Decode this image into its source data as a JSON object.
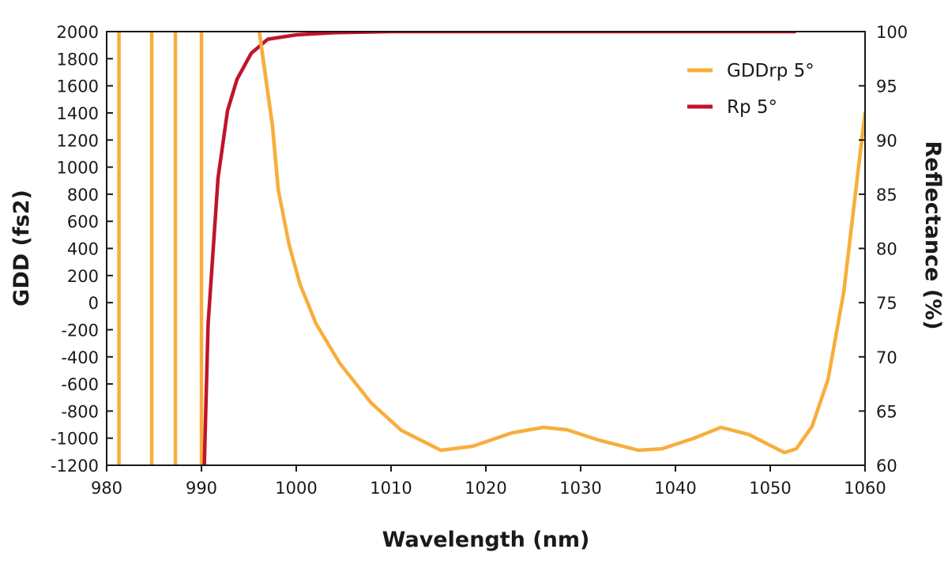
{
  "chart_data": {
    "type": "line",
    "xlabel": "Wavelength (nm)",
    "ylabel_left": "GDD (fs2)",
    "ylabel_right": "Reflectance (%)",
    "xlim": [
      980,
      1060
    ],
    "ylim_left": [
      -1200,
      2000
    ],
    "ylim_right": [
      60,
      100
    ],
    "x_ticks": [
      980,
      990,
      1000,
      1010,
      1020,
      1030,
      1040,
      1050,
      1060
    ],
    "y_left_ticks": [
      2000,
      1800,
      1600,
      1400,
      1200,
      1000,
      800,
      600,
      400,
      200,
      0,
      -200,
      -400,
      -600,
      -800,
      -1000,
      -1200
    ],
    "y_right_ticks": [
      100,
      95,
      90,
      85,
      80,
      75,
      70,
      65,
      60
    ],
    "grid": false,
    "legend_position": "top-right",
    "series": [
      {
        "name": "GDDrp 5°",
        "axis": "left",
        "color": "#F8AE3C",
        "segments": [
          [
            [
              981.3,
              -1200
            ],
            [
              981.3,
              2000
            ]
          ],
          [
            [
              984.75,
              -1200
            ],
            [
              984.75,
              2000
            ]
          ],
          [
            [
              987.25,
              -1200
            ],
            [
              987.25,
              2000
            ]
          ],
          [
            [
              990.0,
              -1200
            ],
            [
              990.0,
              2000
            ]
          ],
          [
            [
              996.1,
              2000
            ],
            [
              997.5,
              1300
            ],
            [
              998.1,
              834
            ],
            [
              999.25,
              426
            ],
            [
              1000.4,
              135
            ],
            [
              1002.1,
              -157
            ],
            [
              1004.6,
              -448
            ],
            [
              1007.9,
              -740
            ],
            [
              1011.1,
              -943
            ],
            [
              1015.25,
              -1089
            ],
            [
              1018.6,
              -1060
            ],
            [
              1022.75,
              -961
            ],
            [
              1026.1,
              -920
            ],
            [
              1028.6,
              -938
            ],
            [
              1031.9,
              -1014
            ],
            [
              1036.1,
              -1089
            ],
            [
              1038.6,
              -1078
            ],
            [
              1041.9,
              -1002
            ],
            [
              1044.8,
              -920
            ],
            [
              1047.75,
              -973
            ],
            [
              1051.5,
              -1107
            ],
            [
              1052.75,
              -1078
            ],
            [
              1054.4,
              -915
            ],
            [
              1056.1,
              -565
            ],
            [
              1057.75,
              76
            ],
            [
              1060,
              1405
            ]
          ]
        ]
      },
      {
        "name": "Rp 5°",
        "axis": "right",
        "color": "#C0142C",
        "segments": [
          [
            [
              990.3,
              60
            ],
            [
              990.7,
              73
            ],
            [
              991.75,
              86.5
            ],
            [
              992.75,
              92.7
            ],
            [
              993.75,
              95.6
            ],
            [
              995.25,
              98
            ],
            [
              997,
              99.3
            ],
            [
              1000,
              99.7
            ],
            [
              1004,
              99.9
            ],
            [
              1010,
              100
            ],
            [
              1052.7,
              100
            ]
          ]
        ]
      }
    ]
  }
}
